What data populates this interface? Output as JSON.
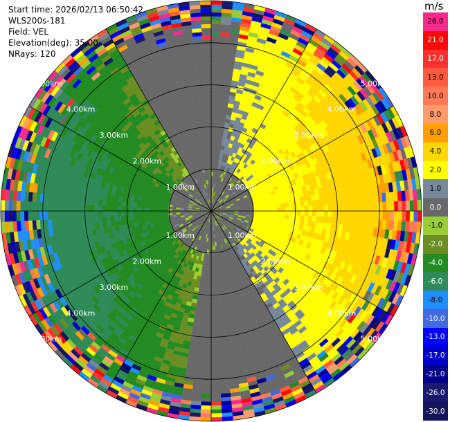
{
  "header": {
    "start_time": "Start time: 2026/02/13 06:50:42",
    "instrument": "WLS200s-181",
    "field": "Field: VEL",
    "elevation": "Elevation(deg): 35.00",
    "nrays": "NRays: 120"
  },
  "colorbar": {
    "unit": "m/s",
    "levels": [
      {
        "label": "26.0",
        "color": "#f52c8c"
      },
      {
        "label": "21.0",
        "color": "#ff0a0a"
      },
      {
        "label": "17.0",
        "color": "#ff3030"
      },
      {
        "label": "13.0",
        "color": "#ff5a3c"
      },
      {
        "label": "10.0",
        "color": "#ff7a55"
      },
      {
        "label": "8.0",
        "color": "#ff9a6a"
      },
      {
        "label": "6.0",
        "color": "#ffa000"
      },
      {
        "label": "4.0",
        "color": "#ffd700"
      },
      {
        "label": "2.0",
        "color": "#ffff00"
      },
      {
        "label": "1.0",
        "color": "#778899"
      },
      {
        "label": "0.0",
        "color": "#696969"
      },
      {
        "label": "-1.0",
        "color": "#9acd32"
      },
      {
        "label": "-2.0",
        "color": "#6b8e23"
      },
      {
        "label": "-4.0",
        "color": "#228b22"
      },
      {
        "label": "-6.0",
        "color": "#2e8b57"
      },
      {
        "label": "-8.0",
        "color": "#1e90ff"
      },
      {
        "label": "-10.0",
        "color": "#4169e1"
      },
      {
        "label": "-13.0",
        "color": "#0000ff"
      },
      {
        "label": "-17.0",
        "color": "#0000cd"
      },
      {
        "label": "-21.0",
        "color": "#00008b"
      },
      {
        "label": "-26.0",
        "color": "#191970"
      },
      {
        "label": "-30.0",
        "color": "#14145a"
      }
    ]
  },
  "chart_data": {
    "type": "heatmap",
    "projection": "polar (PPI)",
    "field": "VEL",
    "units": "m/s",
    "nrays": 120,
    "elevation_deg": 35.0,
    "range_rings_km": [
      1.0,
      2.0,
      3.0,
      4.0,
      5.0
    ],
    "ring_labels": [
      "1.00km",
      "2.00km",
      "3.00km",
      "4.00km",
      "5.00km"
    ],
    "max_range_km": 5.0,
    "grid": true,
    "colorbar_placement": "right",
    "pattern_summary": {
      "near_range_0_1km": "mostly 0.0 to 1.0 m/s (gray)",
      "upwind_sector_east": "2.0 to 6.0 m/s (yellow/orange)",
      "downwind_sector_west": "-1.0 to -4.0 m/s (green)",
      "far_range_4.5_5km": "noisy, full colour range"
    }
  }
}
